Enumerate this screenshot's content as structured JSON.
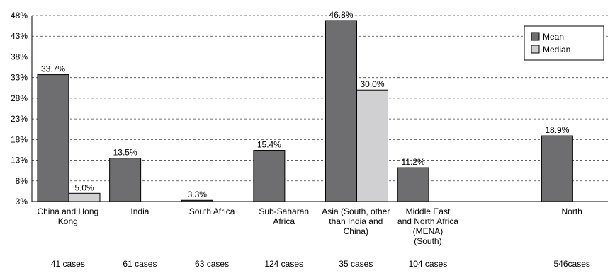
{
  "chart_data": {
    "type": "bar",
    "categories": [
      "China and Hong Kong",
      "India",
      "South Africa",
      "Sub-Saharan Africa",
      "Asia (South, other than India and China)",
      "Middle East and North Africa (MENA) (South)",
      "",
      "North"
    ],
    "category_label_lines": [
      [
        "China and Hong",
        "Kong"
      ],
      [
        "India"
      ],
      [
        "South Africa"
      ],
      [
        "Sub-Saharan",
        "Africa"
      ],
      [
        "Asia (South, other",
        "than India and",
        "China)"
      ],
      [
        "Middle East",
        "and North Africa",
        "(MENA)",
        "(South)"
      ],
      [],
      [
        "North"
      ]
    ],
    "case_counts": [
      "41 cases",
      "61 cases",
      "63 cases",
      "124 cases",
      "35 cases",
      "104 cases",
      "",
      "546cases"
    ],
    "series": [
      {
        "name": "Mean",
        "color": "#6e6e70",
        "values": [
          33.7,
          13.5,
          3.3,
          15.4,
          46.8,
          11.2,
          null,
          18.9
        ],
        "labels": [
          "33.7%",
          "13.5%",
          "3.3%",
          "15.4%",
          "46.8%",
          "11.2%",
          "",
          "18.9%"
        ]
      },
      {
        "name": "Median",
        "color": "#d0d0d2",
        "values": [
          5.0,
          null,
          null,
          null,
          30.0,
          null,
          null,
          null
        ],
        "labels": [
          "5.0%",
          "",
          "",
          "",
          "30.0%",
          "",
          "",
          ""
        ]
      }
    ],
    "yticks": [
      "48%",
      "43%",
      "38%",
      "33%",
      "28%",
      "23%",
      "18%",
      "13%",
      "8%",
      "3%"
    ],
    "ylim": [
      3,
      48
    ],
    "grid": true,
    "legend_position": "top-right"
  }
}
